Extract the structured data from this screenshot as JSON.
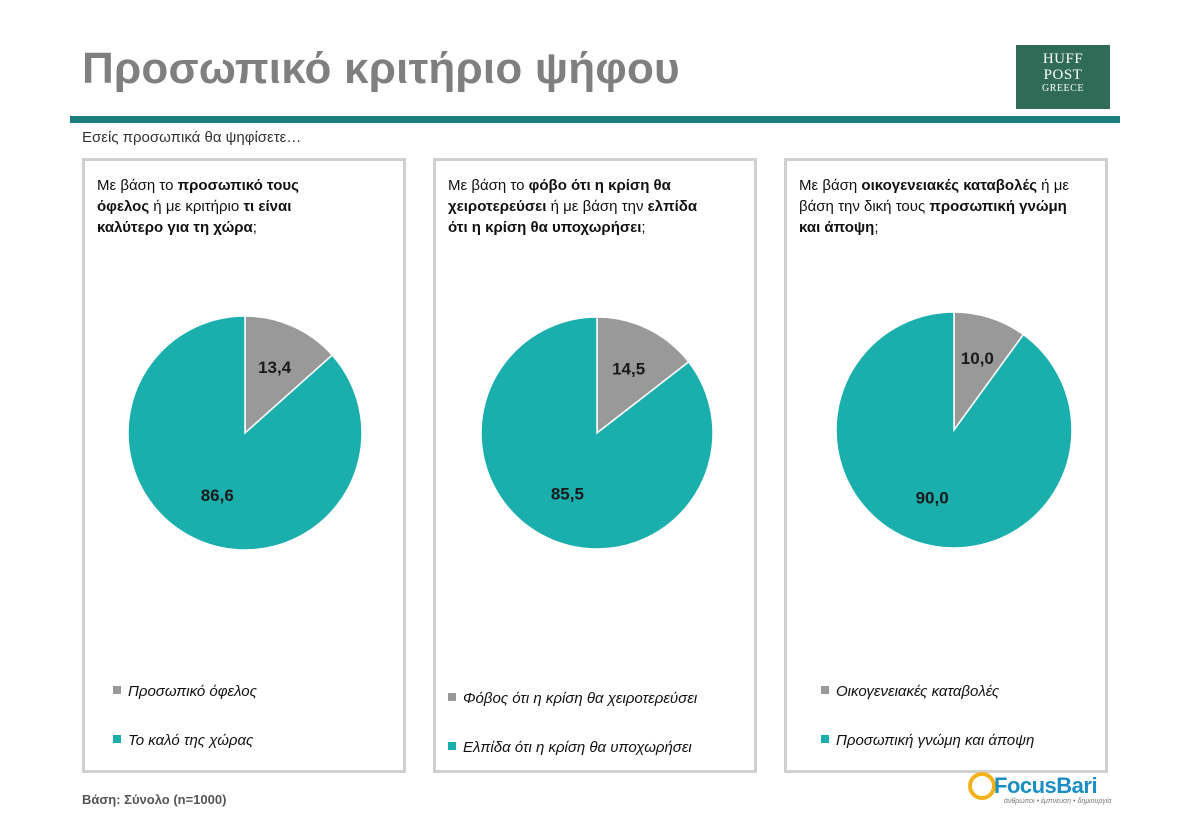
{
  "title": "Προσωπικό κριτήριο ψήφου",
  "logo": {
    "line1": "HUFF",
    "line2": "POST",
    "line3": "GREECE"
  },
  "subtitle": "Εσείς προσωπικά θα ψηφίσετε…",
  "colors": {
    "gray": "#999999",
    "teal": "#1aaeac",
    "rule": "#1c7e7f"
  },
  "panels": [
    {
      "question": [
        [
          "Με βάση το ",
          "προσωπικό τους"
        ],
        [
          "όφελος",
          " ή με κριτήριο ",
          "τι είναι"
        ],
        [
          "καλύτερο για τη χώρα",
          ";"
        ]
      ],
      "legend": [
        "Προσωπικό όφελος",
        "Το καλό της χώρας"
      ]
    },
    {
      "question": [
        [
          "Με βάση το ",
          "φόβο ότι η κρίση θα"
        ],
        [
          "χειροτερεύσει",
          " ή με βάση  την ",
          "ελπίδα"
        ],
        [
          "ότι η κρίση θα υποχωρήσει",
          ";"
        ]
      ],
      "legend": [
        "Φόβος ότι η κρίση θα χειροτερεύσει",
        "Ελπίδα ότι η κρίση θα υποχωρήσει"
      ]
    },
    {
      "question": [
        [
          "Με βάση ",
          "οικογενειακές καταβολές",
          " ή με"
        ],
        [
          "βάση την δική τους ",
          "προσωπική γνώμη"
        ],
        [
          "και άποψη",
          ";"
        ]
      ],
      "legend": [
        "Οικογενειακές καταβολές",
        "Προσωπική γνώμη και άποψη"
      ]
    }
  ],
  "chart_data": [
    {
      "type": "pie",
      "labels": [
        "Προσωπικό όφελος",
        "Το καλό της χώρας"
      ],
      "values": [
        13.4,
        86.6
      ],
      "value_labels": [
        "13,4",
        "86,6"
      ],
      "colors": [
        "#999999",
        "#1aaeac"
      ],
      "legend": "bottom"
    },
    {
      "type": "pie",
      "labels": [
        "Φόβος ότι η κρίση θα χειροτερεύσει",
        "Ελπίδα ότι η κρίση θα υποχωρήσει"
      ],
      "values": [
        14.5,
        85.5
      ],
      "value_labels": [
        "14,5",
        "85,5"
      ],
      "colors": [
        "#999999",
        "#1aaeac"
      ],
      "legend": "bottom"
    },
    {
      "type": "pie",
      "labels": [
        "Οικογενειακές καταβολές",
        "Προσωπική γνώμη και άποψη"
      ],
      "values": [
        10.0,
        90.0
      ],
      "value_labels": [
        "10,0",
        "90,0"
      ],
      "colors": [
        "#999999",
        "#1aaeac"
      ],
      "legend": "bottom"
    }
  ],
  "footer": {
    "base": "Βάση: Σύνολο (n=1000)",
    "brand": "FocusBari",
    "tagline": "άνθρωποι • έμπνευση • δημιουργία"
  }
}
